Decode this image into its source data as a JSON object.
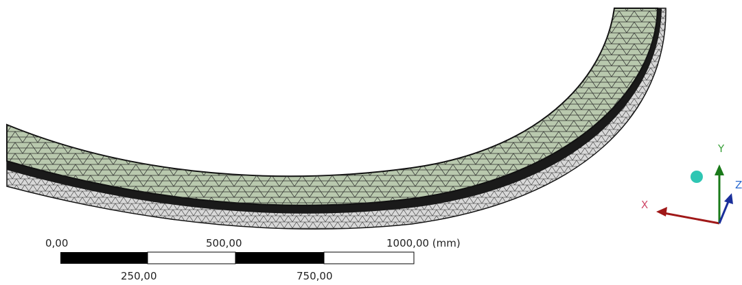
{
  "scale_bar": {
    "top_labels": [
      "0,00",
      "500,00",
      "1000,00 (mm)"
    ],
    "bottom_labels": [
      "250,00",
      "750,00"
    ]
  },
  "triad": {
    "x_label": "X",
    "y_label": "Y",
    "z_label": "Z"
  }
}
